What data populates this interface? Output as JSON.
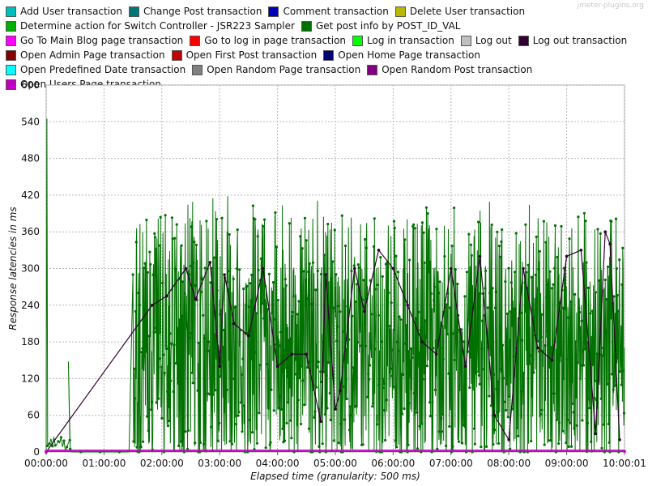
{
  "watermark": "jmeter-plugins.org",
  "legend": [
    {
      "name": "Add User transaction",
      "color": "#00bfbf"
    },
    {
      "name": "Change Post transaction",
      "color": "#007777"
    },
    {
      "name": "Comment transaction",
      "color": "#0000bb"
    },
    {
      "name": "Delete User transaction",
      "color": "#b8b800"
    },
    {
      "name": "Determine action for Switch Controller - JSR223 Sampler",
      "color": "#00b000"
    },
    {
      "name": "Get post info by POST_ID_VAL",
      "color": "#007000"
    },
    {
      "name": "Go To Main Blog page transaction",
      "color": "#ff00ff"
    },
    {
      "name": "Go to log in page transaction",
      "color": "#ff0000"
    },
    {
      "name": "Log in transaction",
      "color": "#00ff00"
    },
    {
      "name": "Log out",
      "color": "#c0c0c0"
    },
    {
      "name": "Log out transaction",
      "color": "#300030"
    },
    {
      "name": "Open Admin Page transaction",
      "color": "#800000"
    },
    {
      "name": "Open First Post transaction",
      "color": "#c00000"
    },
    {
      "name": "Open Home Page transaction",
      "color": "#000070"
    },
    {
      "name": "Open Predefined Date transaction",
      "color": "#00ffff"
    },
    {
      "name": "Open Random Page transaction",
      "color": "#808080"
    },
    {
      "name": "Open Random Post transaction",
      "color": "#800080"
    },
    {
      "name": "Open Users Page transaction",
      "color": "#c000c0"
    }
  ],
  "chart_data": {
    "type": "line",
    "xlabel": "Elapsed time (granularity: 500 ms)",
    "ylabel": "Response latencies in ms",
    "xlim": [
      "00:00:00",
      "10:00:01"
    ],
    "ylim": [
      0,
      600
    ],
    "xticks": [
      "00:00:00",
      "01:00:00",
      "02:00:00",
      "03:00:00",
      "04:00:00",
      "05:00:00",
      "06:00:00",
      "07:00:00",
      "08:00:00",
      "09:00:00",
      "10:00:01"
    ],
    "yticks": [
      0,
      60,
      120,
      180,
      240,
      300,
      360,
      420,
      480,
      540,
      600
    ],
    "grid": true,
    "legend_position": "top",
    "series": [
      {
        "name": "Get post info by POST_ID_VAL",
        "color": "#007000",
        "pattern": "dense noisy line sampled every 500 ms, values ~0–420 ms",
        "x": [
          "00:00:00",
          "00:00:45",
          "00:20:00",
          "00:23:00",
          "00:25:00",
          "01:28:00",
          "01:30:00",
          "01:35:00",
          "02:00:00",
          "02:30:00",
          "03:00:00",
          "03:30:00",
          "04:00:00",
          "04:30:00",
          "05:00:00",
          "05:30:00",
          "06:00:00",
          "06:30:00",
          "07:00:00",
          "07:30:00",
          "08:00:00",
          "08:30:00",
          "09:00:00",
          "09:30:00",
          "10:00:00"
        ],
        "y": [
          0,
          545,
          10,
          148,
          5,
          0,
          320,
          180,
          220,
          250,
          200,
          230,
          190,
          240,
          210,
          220,
          230,
          200,
          210,
          220,
          190,
          230,
          210,
          200,
          320
        ]
      },
      {
        "name": "Log out transaction",
        "color": "#300030",
        "x": [
          "00:00:00",
          "01:50:00",
          "02:05:00",
          "02:25:00",
          "02:35:00",
          "02:50:00",
          "03:00:00",
          "03:05:00",
          "03:15:00",
          "03:30:00",
          "03:45:00",
          "04:00:00",
          "04:15:00",
          "04:30:00",
          "04:45:00",
          "04:50:00",
          "05:00:00",
          "05:05:00",
          "05:20:00",
          "05:30:00",
          "05:45:00",
          "06:00:00",
          "06:15:00",
          "06:30:00",
          "06:45:00",
          "07:00:00",
          "07:15:00",
          "07:30:00",
          "07:45:00",
          "08:00:00",
          "08:15:00",
          "08:30:00",
          "08:45:00",
          "09:00:00",
          "09:15:00",
          "09:30:00",
          "09:40:00",
          "09:45:00",
          "09:55:00"
        ],
        "y": [
          0,
          240,
          255,
          300,
          250,
          310,
          140,
          290,
          210,
          190,
          300,
          140,
          160,
          160,
          50,
          290,
          70,
          100,
          300,
          230,
          330,
          300,
          240,
          180,
          160,
          300,
          140,
          320,
          60,
          20,
          300,
          170,
          150,
          320,
          330,
          30,
          360,
          340,
          20
        ]
      },
      {
        "name": "Open Users Page transaction",
        "color": "#c000c0",
        "x": [
          "00:00:00",
          "10:00:00"
        ],
        "y": [
          1,
          1
        ]
      }
    ]
  }
}
